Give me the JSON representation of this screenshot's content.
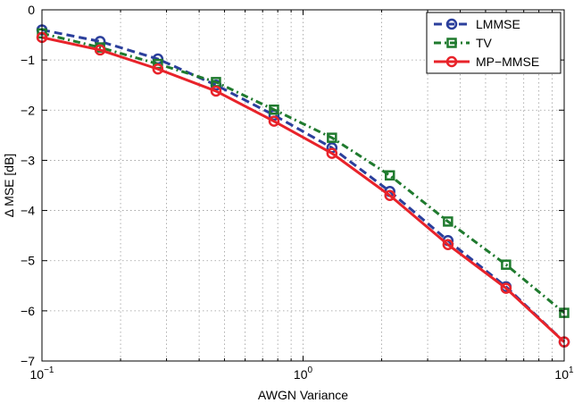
{
  "chart_data": {
    "type": "line",
    "xlabel": "AWGN Variance",
    "ylabel": "Δ MSE [dB]",
    "xscale": "log",
    "xlim": [
      0.1,
      10
    ],
    "ylim": [
      -7,
      0
    ],
    "grid": true,
    "legend_position": "top-right",
    "x_tick_labels": [
      {
        "value": 0.1,
        "base": "10",
        "exp": "−1"
      },
      {
        "value": 1,
        "base": "10",
        "exp": "0"
      },
      {
        "value": 10,
        "base": "10",
        "exp": "1"
      }
    ],
    "y_ticks": [
      0,
      -1,
      -2,
      -3,
      -4,
      -5,
      -6,
      -7
    ],
    "y_tick_labels": [
      "0",
      "−1",
      "−2",
      "−3",
      "−4",
      "−5",
      "−6",
      "−7"
    ],
    "x": [
      0.1,
      0.167,
      0.278,
      0.464,
      0.774,
      1.29,
      2.15,
      3.59,
      5.99,
      10
    ],
    "series": [
      {
        "name": "LMMSE",
        "color": "#2b3f9c",
        "line_style": "dashed",
        "marker": "circle",
        "values": [
          -0.4,
          -0.63,
          -0.98,
          -1.5,
          -2.1,
          -2.75,
          -3.62,
          -4.6,
          -5.52,
          -6.62
        ]
      },
      {
        "name": "TV",
        "color": "#1f7a2e",
        "line_style": "dash-dot",
        "marker": "square",
        "values": [
          -0.47,
          -0.75,
          -1.08,
          -1.44,
          -1.99,
          -2.55,
          -3.3,
          -4.22,
          -5.08,
          -6.04
        ]
      },
      {
        "name": "MP−MMSE",
        "color": "#e8232a",
        "line_style": "solid",
        "marker": "circle",
        "values": [
          -0.55,
          -0.8,
          -1.18,
          -1.62,
          -2.22,
          -2.86,
          -3.7,
          -4.68,
          -5.55,
          -6.62
        ]
      }
    ]
  }
}
